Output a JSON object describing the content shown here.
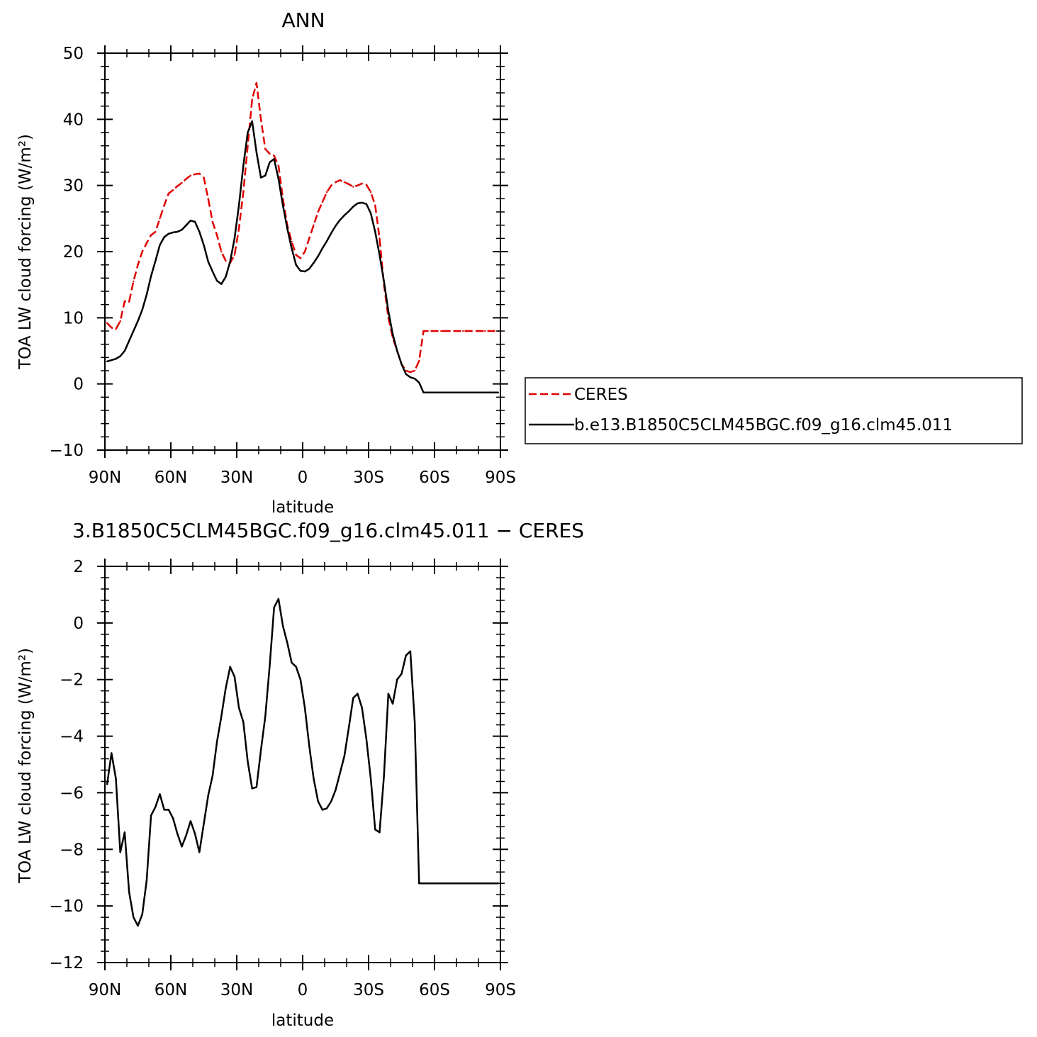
{
  "chart_data": [
    {
      "type": "line",
      "title": "ANN",
      "xlabel": "latitude",
      "ylabel": "TOA LW cloud forcing (W/m²)",
      "xlim": [
        90,
        -90
      ],
      "ylim": [
        -10,
        50
      ],
      "xticks": [
        90,
        60,
        30,
        0,
        -30,
        -60,
        -90
      ],
      "xtick_labels": [
        "90N",
        "60N",
        "30N",
        "0",
        "30S",
        "60S",
        "90S"
      ],
      "yticks": [
        -10,
        0,
        10,
        20,
        30,
        40,
        50
      ],
      "ytick_labels": [
        "−10",
        "0",
        "10",
        "20",
        "30",
        "40",
        "50"
      ],
      "grid": false,
      "legend_position": "right",
      "series": [
        {
          "name": "CERES",
          "color": "#e00000",
          "dash": "dashed",
          "x": [
            89,
            87,
            85,
            83,
            81,
            79,
            77,
            75,
            73,
            71,
            69,
            67,
            65,
            63,
            61,
            59,
            57,
            55,
            53,
            51,
            49,
            47,
            45,
            43,
            41,
            39,
            37,
            35,
            33,
            31,
            29,
            27,
            25,
            23,
            21,
            19,
            17,
            15,
            13,
            11,
            9,
            7,
            5,
            3,
            1,
            -1,
            -3,
            -5,
            -7,
            -9,
            -11,
            -13,
            -15,
            -17,
            -19,
            -21,
            -23,
            -25,
            -27,
            -29,
            -31,
            -33,
            -35,
            -37,
            -39,
            -41,
            -43,
            -45,
            -47,
            -49,
            -51,
            -53,
            -55,
            -57,
            -59,
            -61,
            -63,
            -65,
            -67,
            -69,
            -71,
            -73,
            -75,
            -77,
            -79,
            -81,
            -83,
            -85,
            -87,
            -89
          ],
          "values": [
            9.2,
            8.5,
            8.3,
            9.5,
            12.5,
            12.4,
            15.5,
            18.0,
            20.0,
            21.3,
            22.5,
            23.0,
            25.0,
            27.0,
            28.8,
            29.3,
            29.9,
            30.4,
            31.0,
            31.5,
            31.7,
            31.8,
            31.2,
            28.0,
            24.5,
            22.5,
            20.0,
            18.6,
            18.3,
            19.5,
            23.5,
            29.0,
            36.0,
            43.0,
            45.5,
            40.0,
            35.5,
            34.8,
            34.5,
            33.0,
            28.0,
            24.0,
            21.5,
            19.5,
            19.0,
            20.0,
            22.0,
            24.0,
            26.0,
            27.5,
            29.0,
            30.0,
            30.5,
            30.8,
            30.5,
            30.2,
            29.8,
            30.0,
            30.3,
            30.1,
            29.0,
            27.0,
            22.0,
            15.0,
            10.0,
            7.0,
            5.0,
            3.0,
            2.0,
            1.8,
            2.0,
            3.5,
            8.0,
            8.0,
            8.0,
            8.0,
            8.0,
            8.0,
            8.0,
            8.0,
            8.0,
            8.0,
            8.0,
            8.0,
            8.0,
            8.0,
            8.0,
            8.0,
            8.0,
            8.0
          ]
        },
        {
          "name": "b.e13.B1850C5CLM45BGC.f09_g16.clm45.011",
          "color": "#000000",
          "dash": "solid",
          "x": [
            89,
            87,
            85,
            83,
            81,
            79,
            77,
            75,
            73,
            71,
            69,
            67,
            65,
            63,
            61,
            59,
            57,
            55,
            53,
            51,
            49,
            47,
            45,
            43,
            41,
            39,
            37,
            35,
            33,
            31,
            29,
            27,
            25,
            23,
            21,
            19,
            17,
            15,
            13,
            11,
            9,
            7,
            5,
            3,
            1,
            -1,
            -3,
            -5,
            -7,
            -9,
            -11,
            -13,
            -15,
            -17,
            -19,
            -21,
            -23,
            -25,
            -27,
            -29,
            -31,
            -33,
            -35,
            -37,
            -39,
            -41,
            -43,
            -45,
            -47,
            -49,
            -51,
            -53,
            -55,
            -57,
            -59,
            -61,
            -63,
            -65,
            -67,
            -69,
            -71,
            -73,
            -75,
            -77,
            -79,
            -81,
            -83,
            -85,
            -87,
            -89
          ],
          "values": [
            3.4,
            3.6,
            3.8,
            4.2,
            5.0,
            6.5,
            8.0,
            9.5,
            11.2,
            13.5,
            16.3,
            18.6,
            21.0,
            22.2,
            22.7,
            22.9,
            23.0,
            23.3,
            24.0,
            24.7,
            24.5,
            23.0,
            21.0,
            18.5,
            17.0,
            15.6,
            15.1,
            16.2,
            18.5,
            22.0,
            27.0,
            33.0,
            38.0,
            39.7,
            35.0,
            31.2,
            31.5,
            33.5,
            34.0,
            31.0,
            27.0,
            23.5,
            20.5,
            18.0,
            17.1,
            17.0,
            17.4,
            18.3,
            19.3,
            20.5,
            21.6,
            22.8,
            23.9,
            24.8,
            25.5,
            26.1,
            26.8,
            27.3,
            27.4,
            27.2,
            25.8,
            23.0,
            19.5,
            15.5,
            11.0,
            7.5,
            5.0,
            3.0,
            1.5,
            1.0,
            0.8,
            0.2,
            -1.3,
            -1.3,
            -1.3,
            -1.3,
            -1.3,
            -1.3,
            -1.3,
            -1.3,
            -1.3,
            -1.3,
            -1.3,
            -1.3,
            -1.3,
            -1.3,
            -1.3,
            -1.3,
            -1.3,
            -1.3
          ]
        }
      ]
    },
    {
      "type": "line",
      "title": "3.B1850C5CLM45BGC.f09_g16.clm45.011 − CERES",
      "xlabel": "latitude",
      "ylabel": "TOA LW cloud forcing (W/m²)",
      "xlim": [
        90,
        -90
      ],
      "ylim": [
        -12,
        2
      ],
      "xticks": [
        90,
        60,
        30,
        0,
        -30,
        -60,
        -90
      ],
      "xtick_labels": [
        "90N",
        "60N",
        "30N",
        "0",
        "30S",
        "60S",
        "90S"
      ],
      "yticks": [
        -12,
        -10,
        -8,
        -6,
        -4,
        -2,
        0,
        2
      ],
      "ytick_labels": [
        "−12",
        "−10",
        "−8",
        "−6",
        "−4",
        "−2",
        "0",
        "2"
      ],
      "grid": false,
      "series": [
        {
          "color": "#000000",
          "dash": "solid",
          "x": [
            89,
            87,
            85,
            83,
            81,
            79,
            77,
            75,
            73,
            71,
            69,
            67,
            65,
            63,
            61,
            59,
            57,
            55,
            53,
            51,
            49,
            47,
            45,
            43,
            41,
            39,
            37,
            35,
            33,
            31,
            29,
            27,
            25,
            23,
            21,
            19,
            17,
            15,
            13,
            11,
            9,
            7,
            5,
            3,
            1,
            -1,
            -3,
            -5,
            -7,
            -9,
            -11,
            -13,
            -15,
            -17,
            -19,
            -21,
            -23,
            -25,
            -27,
            -29,
            -31,
            -33,
            -35,
            -37,
            -39,
            -41,
            -43,
            -45,
            -47,
            -49,
            -51,
            -53,
            -55,
            -57,
            -59,
            -61,
            -63,
            -65,
            -67,
            -69,
            -71,
            -73,
            -75,
            -77,
            -79,
            -81,
            -83,
            -85,
            -87,
            -89
          ],
          "values": [
            -5.7,
            -4.6,
            -5.5,
            -8.1,
            -7.4,
            -9.5,
            -10.4,
            -10.7,
            -10.3,
            -9.1,
            -6.8,
            -6.5,
            -6.05,
            -6.6,
            -6.6,
            -6.9,
            -7.45,
            -7.9,
            -7.5,
            -7.0,
            -7.45,
            -8.1,
            -7.1,
            -6.1,
            -5.4,
            -4.2,
            -3.3,
            -2.3,
            -1.55,
            -1.9,
            -3.0,
            -3.5,
            -4.9,
            -5.85,
            -5.8,
            -4.5,
            -3.3,
            -1.5,
            0.55,
            0.85,
            -0.1,
            -0.7,
            -1.4,
            -1.55,
            -2.0,
            -3.0,
            -4.35,
            -5.5,
            -6.3,
            -6.6,
            -6.55,
            -6.3,
            -5.9,
            -5.3,
            -4.7,
            -3.7,
            -2.65,
            -2.5,
            -3.0,
            -4.1,
            -5.5,
            -7.3,
            -7.4,
            -5.4,
            -2.5,
            -2.85,
            -2.0,
            -1.8,
            -1.15,
            -1.0,
            -3.5,
            -9.2,
            -9.2,
            -9.2,
            -9.2,
            -9.2,
            -9.2,
            -9.2,
            -9.2,
            -9.2,
            -9.2,
            -9.2,
            -9.2,
            -9.2,
            -9.2,
            -9.2,
            -9.2,
            -9.2,
            -9.2,
            -9.2
          ]
        }
      ]
    }
  ]
}
